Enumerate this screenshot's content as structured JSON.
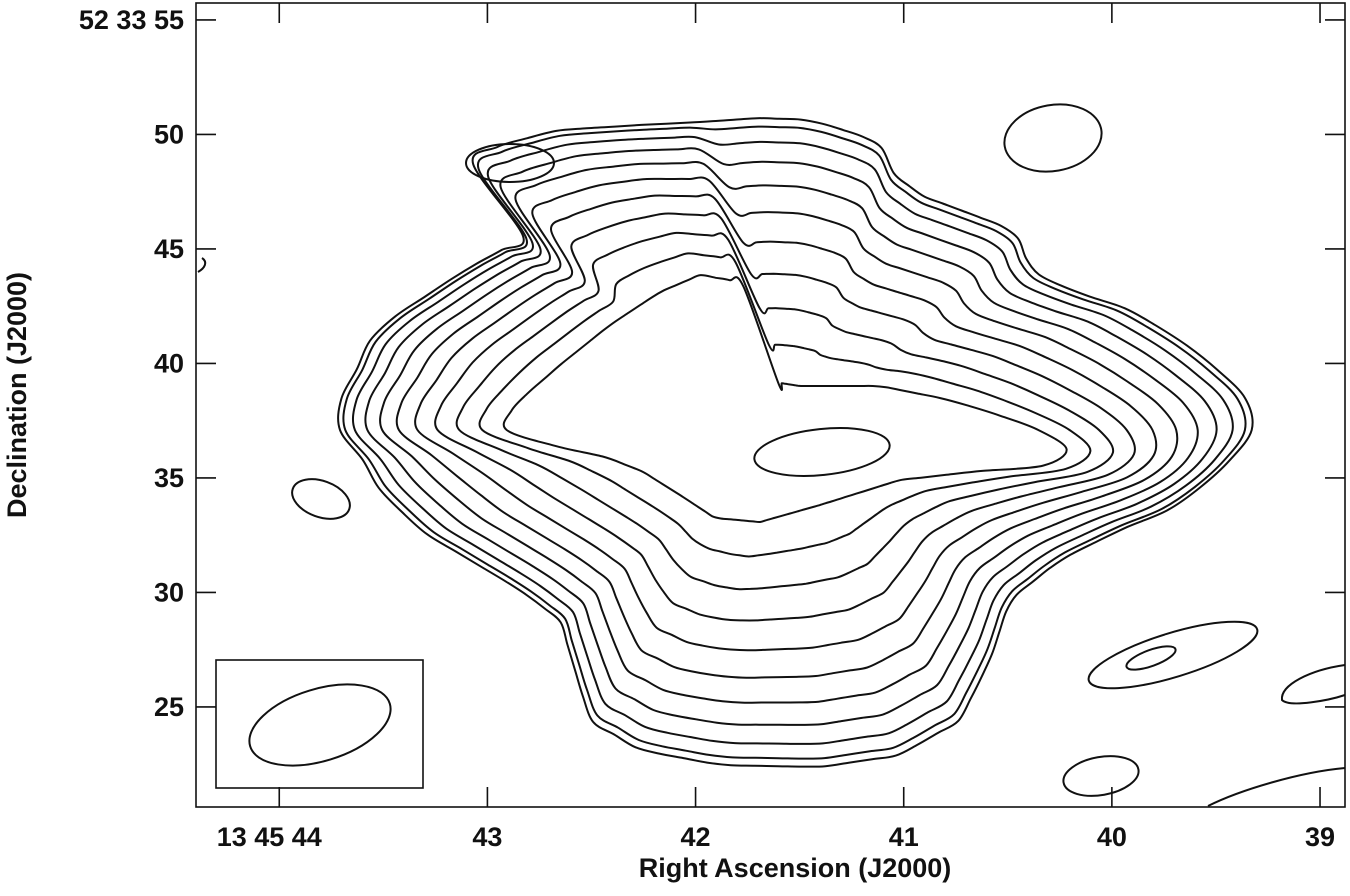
{
  "chart_data": {
    "type": "contour",
    "xlabel": "Right Ascension (J2000)",
    "ylabel": "Declination (J2000)",
    "xlim": [
      44.4,
      38.88
    ],
    "ylim": [
      20.63,
      55.74
    ],
    "xticks": [
      {
        "value": 44,
        "label": "13 45 44"
      },
      43,
      42,
      41,
      40,
      39
    ],
    "yticks": [
      {
        "value": 55,
        "label": "52 33 55"
      },
      50,
      45,
      40,
      35,
      30,
      25
    ]
  }
}
